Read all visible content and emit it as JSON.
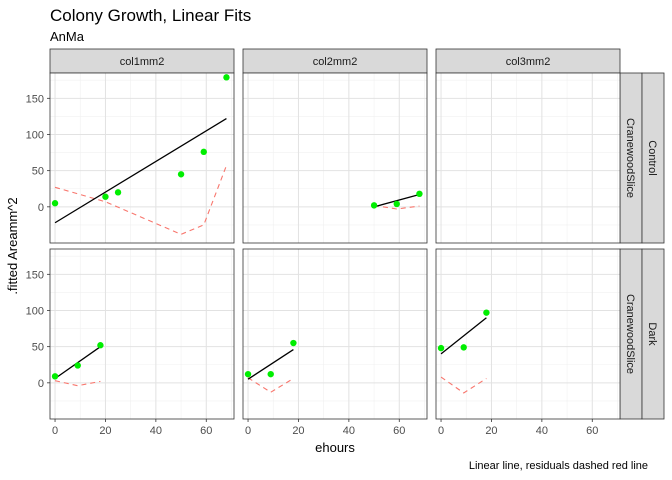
{
  "title": "Colony Growth, Linear Fits",
  "subtitle": "AnMa",
  "caption": "Linear line, residuals dashed red line",
  "colors": {
    "points": "#00ee00",
    "fit_line": "#000000",
    "residual_line": "#f8766d",
    "strip_fill": "#d9d9d9",
    "panel_border": "#333333"
  },
  "chart_data": {
    "type": "scatter",
    "xlabel": "ehours",
    "ylabel": ".fitted Areamm^2",
    "xlim": [
      -2,
      71
    ],
    "ylim": [
      -50,
      185
    ],
    "x_ticks": [
      0,
      20,
      40,
      60
    ],
    "y_ticks": [
      0,
      50,
      100,
      150
    ],
    "grid": true,
    "column_strips": [
      "col1mm2",
      "col2mm2",
      "col3mm2"
    ],
    "row_strips": [
      {
        "outer": "Control",
        "inner": "CranewoodSlice"
      },
      {
        "outer": "Dark",
        "inner": "CranewoodSlice"
      }
    ],
    "panels": [
      {
        "row": 0,
        "col": 0,
        "points": [
          [
            0,
            5
          ],
          [
            20,
            14
          ],
          [
            25,
            20
          ],
          [
            50,
            45
          ],
          [
            59,
            76
          ],
          [
            68,
            179
          ]
        ],
        "fit": [
          [
            0,
            -22
          ],
          [
            68,
            122
          ]
        ],
        "residual": [
          [
            0,
            27
          ],
          [
            20,
            7
          ],
          [
            50,
            -38
          ],
          [
            59,
            -25
          ],
          [
            68,
            57
          ]
        ]
      },
      {
        "row": 0,
        "col": 1,
        "points": [
          [
            50,
            2
          ],
          [
            59,
            4
          ],
          [
            68,
            18
          ]
        ],
        "fit": [
          [
            50,
            0
          ],
          [
            68,
            17
          ]
        ],
        "residual": [
          [
            50,
            2
          ],
          [
            59,
            -3
          ],
          [
            68,
            1
          ]
        ]
      },
      {
        "row": 0,
        "col": 2,
        "points": [],
        "fit": [],
        "residual": []
      },
      {
        "row": 1,
        "col": 0,
        "points": [
          [
            0,
            9
          ],
          [
            9,
            24
          ],
          [
            18,
            52
          ]
        ],
        "fit": [
          [
            0,
            6
          ],
          [
            18,
            50
          ]
        ],
        "residual": [
          [
            0,
            3
          ],
          [
            9,
            -4
          ],
          [
            18,
            2
          ]
        ]
      },
      {
        "row": 1,
        "col": 1,
        "points": [
          [
            0,
            12
          ],
          [
            9,
            12
          ],
          [
            18,
            55
          ]
        ],
        "fit": [
          [
            0,
            5
          ],
          [
            18,
            46
          ]
        ],
        "residual": [
          [
            0,
            7
          ],
          [
            9,
            -13
          ],
          [
            18,
            6
          ]
        ]
      },
      {
        "row": 1,
        "col": 2,
        "points": [
          [
            0,
            48
          ],
          [
            9,
            49
          ],
          [
            18,
            97
          ]
        ],
        "fit": [
          [
            0,
            40
          ],
          [
            18,
            90
          ]
        ],
        "residual": [
          [
            0,
            8
          ],
          [
            9,
            -14
          ],
          [
            18,
            6
          ]
        ]
      }
    ]
  }
}
